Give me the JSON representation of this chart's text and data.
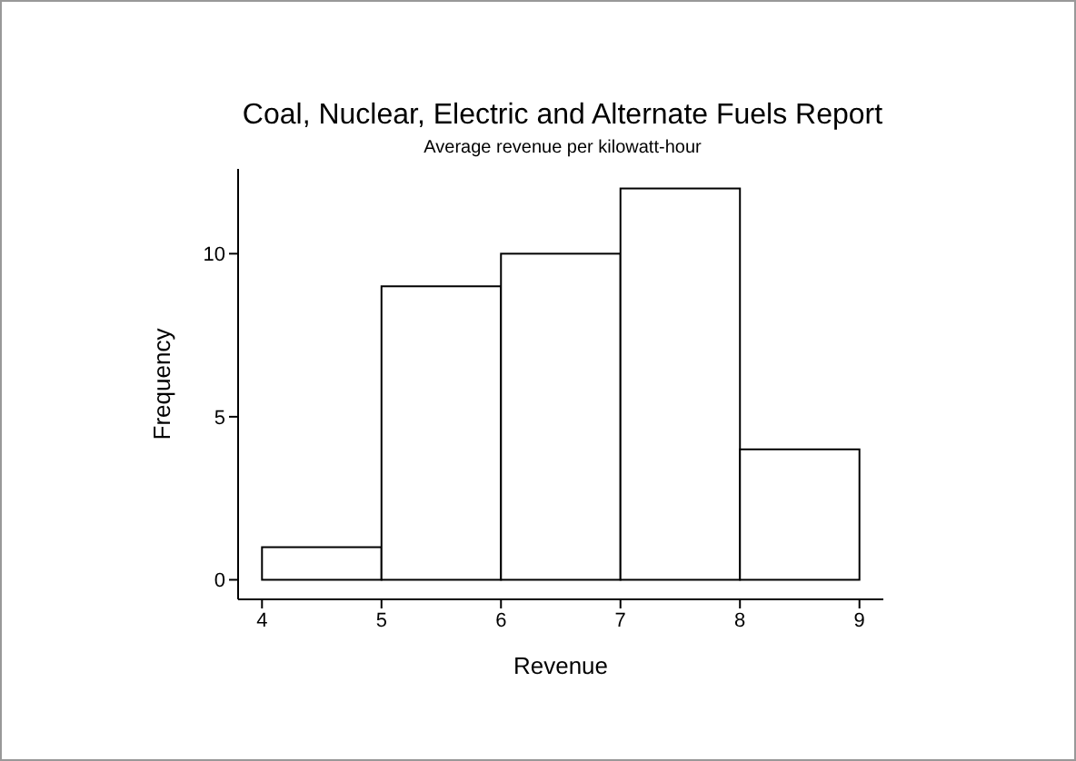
{
  "chart_data": {
    "type": "histogram",
    "title": "Coal, Nuclear, Electric and Alternate Fuels Report",
    "subtitle": "Average revenue per kilowatt-hour",
    "xlabel": "Revenue",
    "ylabel": "Frequency",
    "bins": [
      4,
      5,
      6,
      7,
      8,
      9
    ],
    "values": [
      1,
      9,
      10,
      12,
      4
    ],
    "color": "#ffffff",
    "xlim": [
      3.8,
      9.2
    ],
    "xticks": [
      4,
      5,
      6,
      7,
      8,
      9
    ],
    "ylim": [
      -0.6,
      12.6
    ],
    "yticks": [
      0,
      5,
      10
    ],
    "grid": false
  }
}
